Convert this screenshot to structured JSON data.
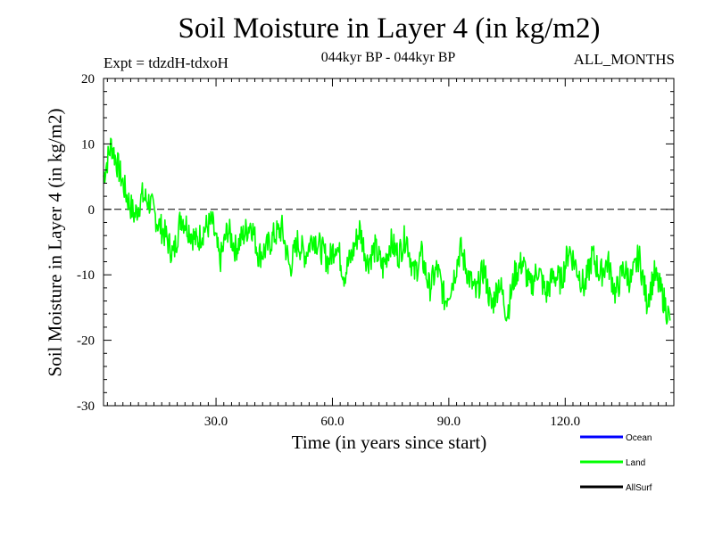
{
  "chart_data": {
    "type": "line",
    "title": "Soil Moisture in Layer 4 (in kg/m2)",
    "experiment": "Expt = tdzdH-tdxoH",
    "period": "044kyr BP - 044kyr BP",
    "months": "ALL_MONTHS",
    "xlabel": "Time (in years since start)",
    "ylabel": "Soil Moisture in Layer 4 (in kg/m2)",
    "xlim": [
      1,
      148
    ],
    "ylim": [
      -30,
      20
    ],
    "x_ticks": [
      "30.0",
      "60.0",
      "90.0",
      "120.0"
    ],
    "x_tick_values": [
      30,
      60,
      90,
      120
    ],
    "y_ticks": [
      "20",
      "10",
      "0",
      "-10",
      "-20",
      "-30"
    ],
    "y_tick_values": [
      20,
      10,
      0,
      -10,
      -20,
      -30
    ],
    "reference_line": 0,
    "colors": {
      "Ocean": "#0000ff",
      "Land": "#00ff00",
      "AllSurf": "#000000"
    },
    "legend": [
      {
        "name": "Ocean",
        "color": "#0000ff"
      },
      {
        "name": "Land",
        "color": "#00ff00"
      },
      {
        "name": "AllSurf",
        "color": "#000000"
      }
    ],
    "series": [
      {
        "name": "Land",
        "x": [
          1,
          3,
          5,
          7,
          9,
          11,
          13,
          15,
          17,
          19,
          21,
          23,
          25,
          27,
          29,
          31,
          33,
          35,
          37,
          39,
          41,
          43,
          45,
          47,
          49,
          51,
          53,
          55,
          57,
          59,
          61,
          63,
          65,
          67,
          69,
          71,
          73,
          75,
          77,
          79,
          81,
          83,
          85,
          87,
          89,
          91,
          93,
          95,
          97,
          99,
          101,
          103,
          105,
          107,
          109,
          111,
          113,
          115,
          117,
          119,
          121,
          123,
          125,
          127,
          129,
          131,
          133,
          135,
          137,
          139,
          141,
          143,
          145,
          147
        ],
        "values": [
          5,
          10,
          6,
          2,
          -1,
          2,
          1,
          -2,
          -4,
          -7,
          -1,
          -3,
          -5,
          -3,
          -2,
          -8,
          -3,
          -6,
          -4,
          -2,
          -7,
          -6,
          -4,
          -3,
          -9,
          -5,
          -7,
          -4,
          -6,
          -8,
          -5,
          -10,
          -7,
          -3,
          -8,
          -6,
          -9,
          -5,
          -7,
          -4,
          -10,
          -7,
          -12,
          -9,
          -14,
          -11,
          -6,
          -10,
          -13,
          -9,
          -15,
          -11,
          -16,
          -10,
          -8,
          -12,
          -9,
          -13,
          -10,
          -11,
          -6,
          -9,
          -12,
          -7,
          -10,
          -8,
          -13,
          -9,
          -11,
          -7,
          -14,
          -10,
          -13,
          -17
        ]
      }
    ]
  }
}
